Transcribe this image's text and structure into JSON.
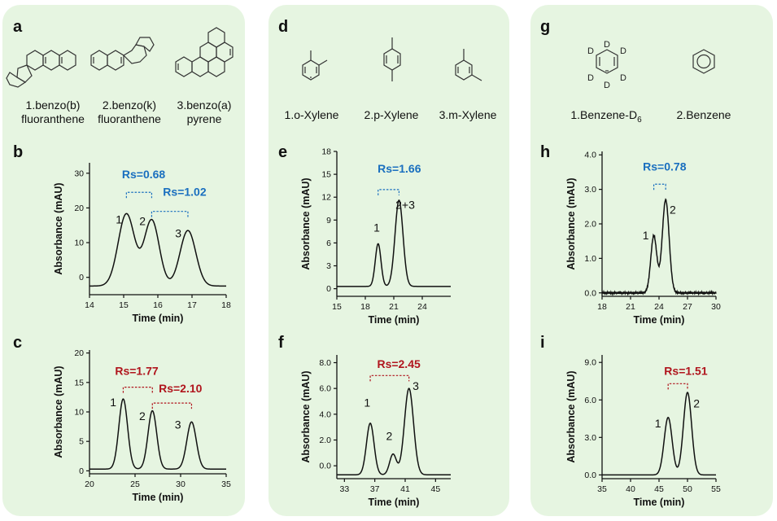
{
  "panel_labels": {
    "a": "a",
    "b": "b",
    "c": "c",
    "d": "d",
    "e": "e",
    "f": "f",
    "g": "g",
    "h": "h",
    "i": "i"
  },
  "compounds": {
    "a": [
      "1.benzo(b)\nfluoranthene",
      "2.benzo(k)\nfluoranthene",
      "3.benzo(a)\npyrene"
    ],
    "d": [
      "1.o-Xylene",
      "2.p-Xylene",
      "3.m-Xylene"
    ],
    "g_1_main": "1.Benzene-D",
    "g_1_sub": "6",
    "g_2": "2.Benzene",
    "deuterium": "D"
  },
  "chart_data": [
    {
      "id": "b",
      "type": "line",
      "xlabel": "Time (min)",
      "ylabel": "Absorbance (mAU)",
      "xlim": [
        14,
        18
      ],
      "ylim": [
        -5,
        33
      ],
      "xticks": [
        14,
        15,
        16,
        17,
        18
      ],
      "yticks": [
        0,
        10,
        20,
        30
      ],
      "baseline": -2.5,
      "peaks": [
        {
          "c": 15.08,
          "h": 20.8,
          "w": 0.24
        },
        {
          "c": 15.82,
          "h": 19.0,
          "w": 0.22
        },
        {
          "c": 16.88,
          "h": 16.0,
          "w": 0.23
        }
      ],
      "labels": [
        {
          "text": "1",
          "x": 14.86,
          "y": 15.5
        },
        {
          "text": "2",
          "x": 15.55,
          "y": 15.0
        },
        {
          "text": "3",
          "x": 16.6,
          "y": 11.5
        }
      ],
      "rs": [
        {
          "text": "Rs=0.68",
          "x1": 15.08,
          "x2": 15.82,
          "y": 24.5,
          "tx": 14.95,
          "ty": 28.5
        },
        {
          "text": "Rs=1.02",
          "x1": 15.82,
          "x2": 16.88,
          "y": 19.0,
          "tx": 16.15,
          "ty": 23.5
        }
      ],
      "color": "#1a6fbf"
    },
    {
      "id": "c",
      "type": "line",
      "xlabel": "Time (min)",
      "ylabel": "Absorbance (mAU)",
      "xlim": [
        20,
        35
      ],
      "ylim": [
        -0.5,
        20.5
      ],
      "xticks": [
        20,
        25,
        30,
        35
      ],
      "yticks": [
        0,
        5,
        10,
        15,
        20
      ],
      "baseline": 0.3,
      "peaks": [
        {
          "c": 23.7,
          "h": 11.9,
          "w": 0.48
        },
        {
          "c": 26.9,
          "h": 9.9,
          "w": 0.48
        },
        {
          "c": 31.2,
          "h": 8.0,
          "w": 0.52
        }
      ],
      "labels": [
        {
          "text": "1",
          "x": 22.6,
          "y": 11.0
        },
        {
          "text": "2",
          "x": 25.8,
          "y": 8.6
        },
        {
          "text": "3",
          "x": 29.7,
          "y": 7.2
        }
      ],
      "rs": [
        {
          "text": "Rs=1.77",
          "x1": 23.7,
          "x2": 26.9,
          "y": 14.2,
          "tx": 22.8,
          "ty": 16.3
        },
        {
          "text": "Rs=2.10",
          "x1": 26.9,
          "x2": 31.2,
          "y": 11.5,
          "tx": 27.6,
          "ty": 13.3
        }
      ],
      "color": "#b0151d"
    },
    {
      "id": "e",
      "type": "line",
      "xlabel": "Time (min)",
      "ylabel": "Absorbance (mAU)",
      "xlim": [
        15,
        27
      ],
      "ylim": [
        -1,
        18
      ],
      "xticks": [
        15,
        18,
        21,
        24
      ],
      "yticks": [
        0,
        3,
        6,
        9,
        12,
        15,
        18
      ],
      "baseline": 0.3,
      "peaks": [
        {
          "c": 19.35,
          "h": 5.6,
          "w": 0.3
        },
        {
          "c": 21.55,
          "h": 11.3,
          "w": 0.42
        }
      ],
      "labels": [
        {
          "text": "1",
          "x": 19.2,
          "y": 7.5
        },
        {
          "text": "2+3",
          "x": 22.2,
          "y": 10.5
        }
      ],
      "rs": [
        {
          "text": "Rs=1.66",
          "x1": 19.35,
          "x2": 21.55,
          "y": 13.0,
          "tx": 19.3,
          "ty": 15.2
        }
      ],
      "color": "#1a6fbf"
    },
    {
      "id": "f",
      "type": "line",
      "xlabel": "Time (min)",
      "ylabel": "Absorbance (mAU)",
      "xlim": [
        32,
        47
      ],
      "ylim": [
        -1,
        8.6
      ],
      "xticks": [
        33,
        37,
        41,
        45
      ],
      "yticks": [
        0.0,
        2.0,
        4.0,
        6.0,
        8.0
      ],
      "baseline": -0.7,
      "peaks": [
        {
          "c": 36.4,
          "h": 4.0,
          "w": 0.5
        },
        {
          "c": 39.4,
          "h": 1.6,
          "w": 0.45
        },
        {
          "c": 41.5,
          "h": 6.7,
          "w": 0.6
        }
      ],
      "labels": [
        {
          "text": "1",
          "x": 36.0,
          "y": 4.6
        },
        {
          "text": "2",
          "x": 38.9,
          "y": 2.0
        },
        {
          "text": "3",
          "x": 42.4,
          "y": 5.9
        }
      ],
      "rs": [
        {
          "text": "Rs=2.45",
          "x1": 36.4,
          "x2": 41.5,
          "y": 7.0,
          "tx": 37.3,
          "ty": 7.6
        }
      ],
      "color": "#b0151d"
    },
    {
      "id": "h",
      "type": "line",
      "xlabel": "Time (min)",
      "ylabel": "Absorbance (mAU)",
      "xlim": [
        18,
        30
      ],
      "ylim": [
        -0.1,
        4.1
      ],
      "xticks": [
        18,
        21,
        24,
        27,
        30
      ],
      "yticks": [
        0.0,
        1.0,
        2.0,
        3.0,
        4.0
      ],
      "baseline": 0.0,
      "peaks": [
        {
          "c": 23.45,
          "h": 1.65,
          "w": 0.32
        },
        {
          "c": 24.7,
          "h": 2.7,
          "w": 0.36
        }
      ],
      "labels": [
        {
          "text": "1",
          "x": 22.6,
          "y": 1.55
        },
        {
          "text": "2",
          "x": 25.45,
          "y": 2.3
        }
      ],
      "rs": [
        {
          "text": "Rs=0.78",
          "x1": 23.45,
          "x2": 24.7,
          "y": 3.15,
          "tx": 22.3,
          "ty": 3.55
        }
      ],
      "color": "#1a6fbf"
    },
    {
      "id": "i",
      "type": "line",
      "xlabel": "Time (min)",
      "ylabel": "Absorbance (mAU)",
      "xlim": [
        35,
        55
      ],
      "ylim": [
        -0.3,
        9.6
      ],
      "xticks": [
        35,
        40,
        45,
        50,
        55
      ],
      "yticks": [
        0.0,
        3.0,
        6.0,
        9.0
      ],
      "baseline": 0.0,
      "peaks": [
        {
          "c": 46.6,
          "h": 4.6,
          "w": 0.7
        },
        {
          "c": 50.0,
          "h": 6.6,
          "w": 0.72
        }
      ],
      "labels": [
        {
          "text": "1",
          "x": 44.8,
          "y": 3.8
        },
        {
          "text": "2",
          "x": 51.6,
          "y": 5.4
        }
      ],
      "rs": [
        {
          "text": "Rs=1.51",
          "x1": 46.6,
          "x2": 50.0,
          "y": 7.3,
          "tx": 45.9,
          "ty": 8.0
        }
      ],
      "color": "#b0151d"
    }
  ]
}
